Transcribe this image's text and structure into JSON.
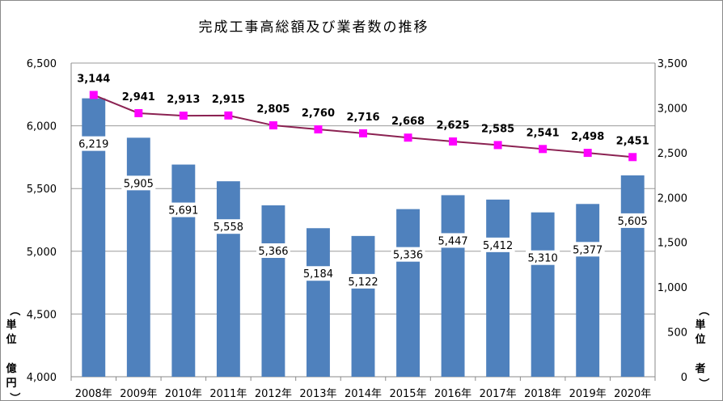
{
  "chart_data": {
    "type": "bar",
    "title": "完成工事高総額及び業者数の推移",
    "categories": [
      "2008年",
      "2009年",
      "2010年",
      "2011年",
      "2012年",
      "2013年",
      "2014年",
      "2015年",
      "2016年",
      "2017年",
      "2018年",
      "2019年",
      "2020年"
    ],
    "series": [
      {
        "axis": "left",
        "type": "bar",
        "color": "#4f81bd",
        "values": [
          6219,
          5905,
          5691,
          5558,
          5366,
          5184,
          5122,
          5336,
          5447,
          5412,
          5310,
          5377,
          5605
        ]
      },
      {
        "axis": "right",
        "type": "line",
        "color": "#8b2252",
        "marker_color": "#ff00ff",
        "values": [
          3144,
          2941,
          2913,
          2915,
          2805,
          2760,
          2716,
          2668,
          2625,
          2585,
          2541,
          2498,
          2451
        ]
      }
    ],
    "ylabel": "（単位 億円）",
    "ylabel_right": "（単位 者）",
    "ylim": [
      4000,
      6500
    ],
    "yticks": [
      "4,000",
      "4,500",
      "5,000",
      "5,500",
      "6,000",
      "6,500"
    ],
    "ylim_right": [
      0,
      3500
    ],
    "yticks_right": [
      "0",
      "500",
      "1,000",
      "1,500",
      "2,000",
      "2,500",
      "3,000",
      "3,500"
    ],
    "grid": true,
    "legend": "none"
  }
}
